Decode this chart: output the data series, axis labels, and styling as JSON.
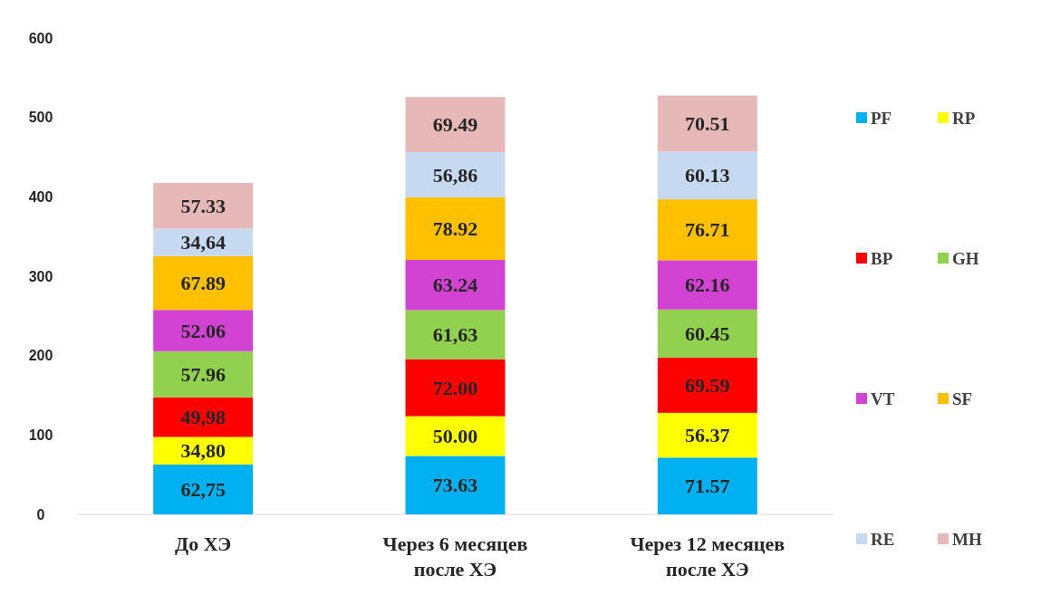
{
  "chart_data": {
    "type": "bar",
    "stacked": true,
    "categories": [
      "До ХЭ",
      "Через 6 месяцев после ХЭ",
      "Через 12 месяцев после ХЭ"
    ],
    "ylim": [
      0,
      600
    ],
    "yticks": [
      0,
      100,
      200,
      300,
      400,
      500,
      600
    ],
    "grid": false,
    "legend": "right",
    "series": [
      {
        "name": "PF",
        "color": "#00b0f0",
        "values": [
          62.75,
          73.63,
          71.57
        ],
        "value_labels": [
          "62,75",
          "73.63",
          "71.57"
        ]
      },
      {
        "name": "RP",
        "color": "#ffff00",
        "values": [
          34.8,
          50.0,
          56.37
        ],
        "value_labels": [
          "34,80",
          "50.00",
          "56.37"
        ]
      },
      {
        "name": "BP",
        "color": "#ff0000",
        "values": [
          49.98,
          72.0,
          69.59
        ],
        "value_labels": [
          "49,98",
          "72.00",
          "69.59"
        ]
      },
      {
        "name": "GH",
        "color": "#92d050",
        "values": [
          57.96,
          61.63,
          60.45
        ],
        "value_labels": [
          "57.96",
          "61,63",
          "60.45"
        ]
      },
      {
        "name": "VT",
        "color": "#d343d3",
        "values": [
          52.06,
          63.24,
          62.16
        ],
        "value_labels": [
          "52.06",
          "63.24",
          "62.16"
        ]
      },
      {
        "name": "SF",
        "color": "#ffc000",
        "values": [
          67.89,
          78.92,
          76.71
        ],
        "value_labels": [
          "67.89",
          "78.92",
          "76.71"
        ]
      },
      {
        "name": "RE",
        "color": "#c6d9f1",
        "values": [
          34.64,
          56.86,
          60.13
        ],
        "value_labels": [
          "34,64",
          "56,86",
          "60.13"
        ]
      },
      {
        "name": "MH",
        "color": "#e6b9b8",
        "values": [
          57.33,
          69.49,
          70.51
        ],
        "value_labels": [
          "57.33",
          "69.49",
          "70.51"
        ]
      }
    ]
  }
}
